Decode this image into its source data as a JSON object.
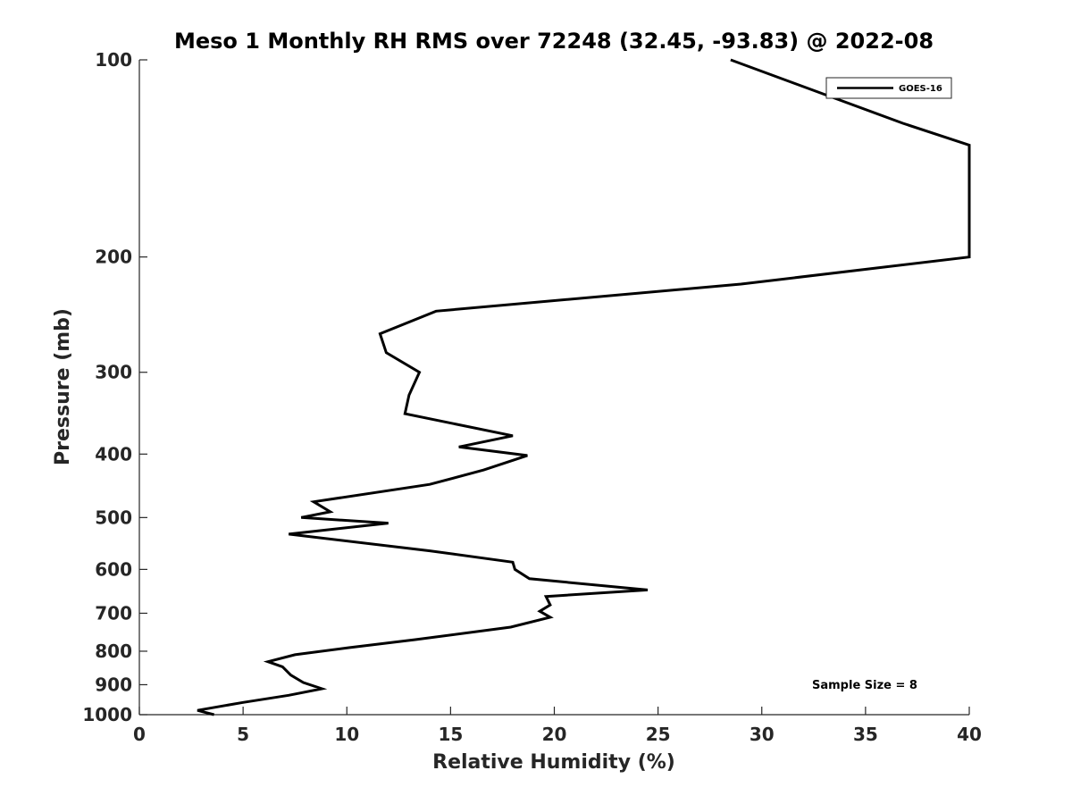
{
  "chart_data": {
    "type": "line",
    "title": "Meso 1 Monthly RH RMS over 72248 (32.45, -93.83) @ 2022-08",
    "xlabel": "Relative Humidity (%)",
    "ylabel": "Pressure (mb)",
    "xlim": [
      0,
      40
    ],
    "ylim": [
      100,
      1000
    ],
    "y_scale": "log",
    "y_reversed": true,
    "x_ticks": [
      0,
      5,
      10,
      15,
      20,
      25,
      30,
      35,
      40
    ],
    "x_tick_labels": [
      "0",
      "5",
      "10",
      "15",
      "20",
      "25",
      "30",
      "35",
      "40"
    ],
    "y_ticks": [
      100,
      200,
      300,
      400,
      500,
      600,
      700,
      800,
      900,
      1000
    ],
    "y_tick_labels": [
      "100",
      "200",
      "300",
      "400",
      "500",
      "600",
      "700",
      "800",
      "900",
      "1000"
    ],
    "grid": false,
    "legend_position": "top-right",
    "annotation": "Sample Size = 8",
    "series": [
      {
        "name": "GOES-16",
        "color": "#000000",
        "points": [
          [
            28.5,
            100
          ],
          [
            36.8,
            125
          ],
          [
            40.0,
            135
          ],
          [
            40.0,
            200
          ],
          [
            29.0,
            220
          ],
          [
            14.3,
            242
          ],
          [
            11.6,
            262
          ],
          [
            11.9,
            280
          ],
          [
            13.5,
            300
          ],
          [
            13.0,
            325
          ],
          [
            12.8,
            347
          ],
          [
            18.0,
            375
          ],
          [
            15.4,
            390
          ],
          [
            18.7,
            402
          ],
          [
            16.6,
            423
          ],
          [
            14.0,
            445
          ],
          [
            8.4,
            473
          ],
          [
            9.2,
            490
          ],
          [
            7.8,
            500
          ],
          [
            12.0,
            510
          ],
          [
            7.2,
            530
          ],
          [
            14.0,
            562
          ],
          [
            18.0,
            585
          ],
          [
            18.1,
            600
          ],
          [
            18.8,
            620
          ],
          [
            24.5,
            645
          ],
          [
            19.6,
            660
          ],
          [
            19.8,
            680
          ],
          [
            19.3,
            695
          ],
          [
            19.8,
            710
          ],
          [
            17.9,
            735
          ],
          [
            13.3,
            768
          ],
          [
            10.1,
            790
          ],
          [
            7.5,
            810
          ],
          [
            6.2,
            830
          ],
          [
            6.9,
            845
          ],
          [
            7.3,
            870
          ],
          [
            7.9,
            893
          ],
          [
            8.8,
            913
          ],
          [
            7.2,
            934
          ],
          [
            5.0,
            958
          ],
          [
            2.8,
            985
          ],
          [
            3.6,
            1000
          ]
        ]
      }
    ]
  }
}
